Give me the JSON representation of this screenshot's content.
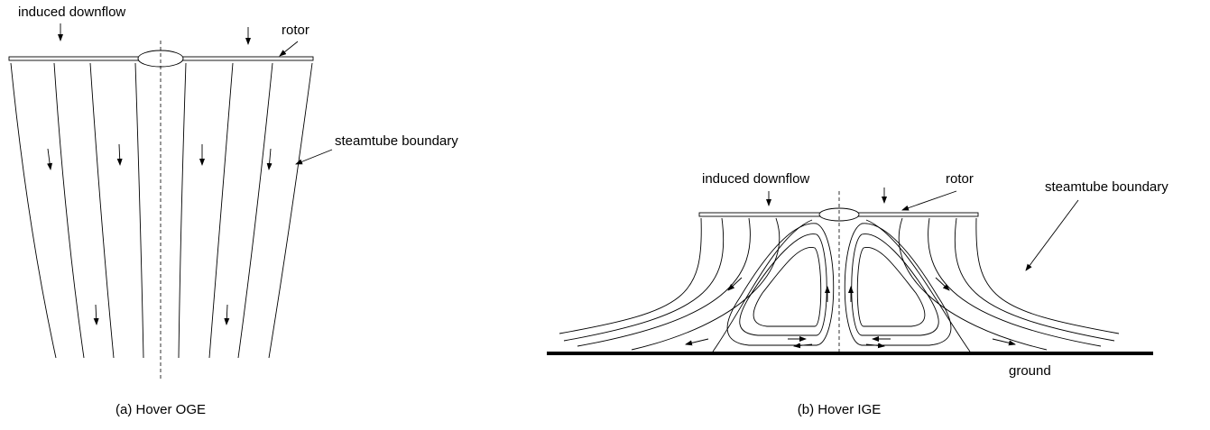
{
  "panels": [
    {
      "caption": "(a) Hover OGE",
      "labels": {
        "downflow": "induced downflow",
        "rotor": "rotor",
        "boundary": "steamtube boundary"
      }
    },
    {
      "caption": "(b) Hover IGE",
      "labels": {
        "downflow": "induced downflow",
        "rotor": "rotor",
        "boundary": "steamtube boundary",
        "ground": "ground"
      }
    }
  ]
}
